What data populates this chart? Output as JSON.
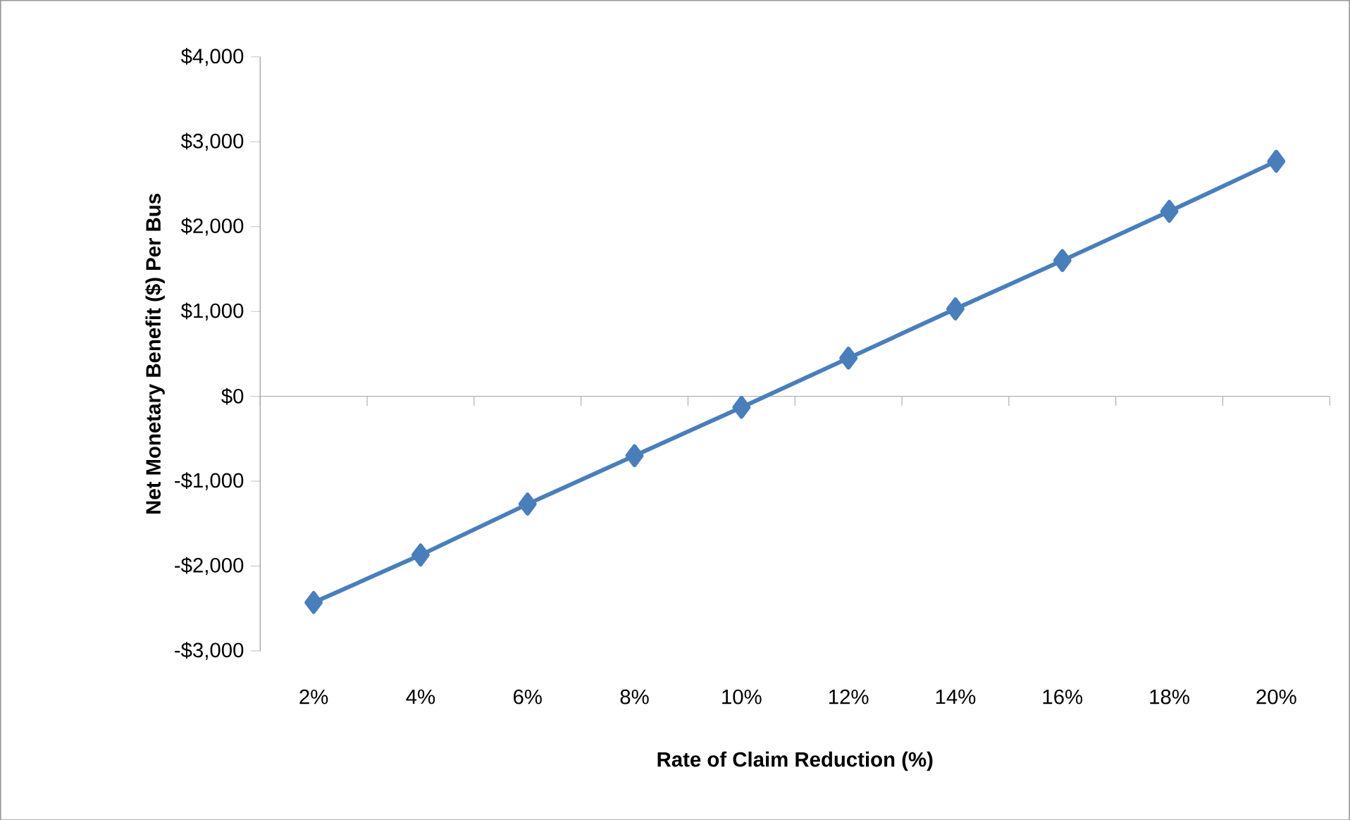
{
  "chart_data": {
    "type": "line",
    "xlabel": "Rate of Claim Reduction (%)",
    "ylabel": "Net Monetary Benefit ($) Per Bus",
    "categories": [
      "2%",
      "4%",
      "6%",
      "8%",
      "10%",
      "12%",
      "14%",
      "16%",
      "18%",
      "20%"
    ],
    "series": [
      {
        "color": "#4a7ebb",
        "values": [
          -2430,
          -1870,
          -1270,
          -700,
          -130,
          450,
          1030,
          1600,
          2180,
          2770
        ]
      }
    ],
    "ylim": [
      -3000,
      4000
    ],
    "yticks": [
      {
        "value": -3000,
        "label": "-$3,000"
      },
      {
        "value": -2000,
        "label": "-$2,000"
      },
      {
        "value": -1000,
        "label": "-$1,000"
      },
      {
        "value": 0,
        "label": "$0"
      },
      {
        "value": 1000,
        "label": "$1,000"
      },
      {
        "value": 2000,
        "label": "$2,000"
      },
      {
        "value": 3000,
        "label": "$3,000"
      },
      {
        "value": 4000,
        "label": "$4,000"
      }
    ],
    "ref_lines": [
      {
        "axis": "y",
        "value": 0,
        "color": "#a6a6a6"
      }
    ],
    "grid": false,
    "legend": false,
    "marker": "diamond",
    "line_style": "solid"
  }
}
